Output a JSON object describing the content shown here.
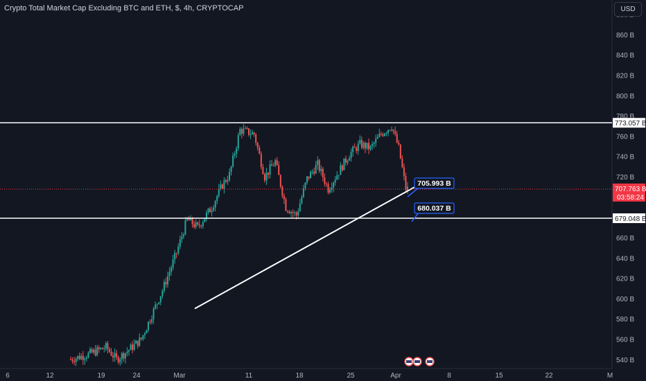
{
  "header": {
    "title": "Crypto Total Market Cap Excluding BTC and ETH, $, 4h, CRYPTOCAP",
    "currency": "USD"
  },
  "colors": {
    "background": "#131722",
    "up": "#26a69a",
    "down": "#ef5350",
    "axis_text": "#b2b5be",
    "callout_border": "#2962ff",
    "hline": "#ffffff",
    "price_badge": "#f23645"
  },
  "chart_data": {
    "type": "candlestick",
    "x_ticks": [
      "6",
      "12",
      "19",
      "24",
      "Mar",
      "11",
      "18",
      "25",
      "Apr",
      "8",
      "15",
      "22",
      "M"
    ],
    "y_ticks": [
      "880 B",
      "860 B",
      "840 B",
      "820 B",
      "800 B",
      "780 B",
      "760 B",
      "740 B",
      "720 B",
      "700 B",
      "680 B",
      "660 B",
      "640 B",
      "620 B",
      "600 B",
      "580 B",
      "560 B",
      "540 B"
    ],
    "y_tick_values": [
      880,
      860,
      840,
      820,
      800,
      780,
      760,
      740,
      720,
      700,
      680,
      660,
      640,
      620,
      600,
      580,
      560,
      540
    ],
    "ylim": [
      531,
      894
    ],
    "y_unit": "B",
    "waypoints": [
      [
        0,
        540
      ],
      [
        10,
        545
      ],
      [
        20,
        552
      ],
      [
        26,
        540
      ],
      [
        32,
        548
      ],
      [
        40,
        560
      ],
      [
        52,
        608
      ],
      [
        60,
        645
      ],
      [
        66,
        678
      ],
      [
        72,
        670
      ],
      [
        80,
        690
      ],
      [
        86,
        712
      ],
      [
        90,
        722
      ],
      [
        96,
        766
      ],
      [
        104,
        762
      ],
      [
        110,
        720
      ],
      [
        116,
        735
      ],
      [
        122,
        690
      ],
      [
        128,
        682
      ],
      [
        134,
        718
      ],
      [
        140,
        732
      ],
      [
        146,
        708
      ],
      [
        152,
        725
      ],
      [
        158,
        742
      ],
      [
        164,
        752
      ],
      [
        170,
        748
      ],
      [
        176,
        762
      ],
      [
        182,
        770
      ],
      [
        186,
        748
      ],
      [
        190,
        708
      ],
      [
        192,
        707.76
      ]
    ],
    "series": [
      {
        "type": "candles",
        "x_start": "Feb 5",
        "interval": "4h",
        "count": 192
      }
    ],
    "annotations": {
      "horizontal_lines": [
        {
          "value": 773.057,
          "label": "773.057 B"
        },
        {
          "value": 679.048,
          "label": "679.048 B"
        }
      ],
      "trendline": {
        "start": {
          "x": "Mar 3",
          "y": 590
        },
        "end": {
          "x": "Apr 2",
          "y": 718
        }
      },
      "callouts": [
        {
          "label": "705.993 B",
          "value": 705.993
        },
        {
          "label": "680.037 B",
          "value": 680.037
        }
      ],
      "last_price": {
        "value": 707.763,
        "label": "707.763 B",
        "countdown": "03:58:24"
      }
    }
  }
}
